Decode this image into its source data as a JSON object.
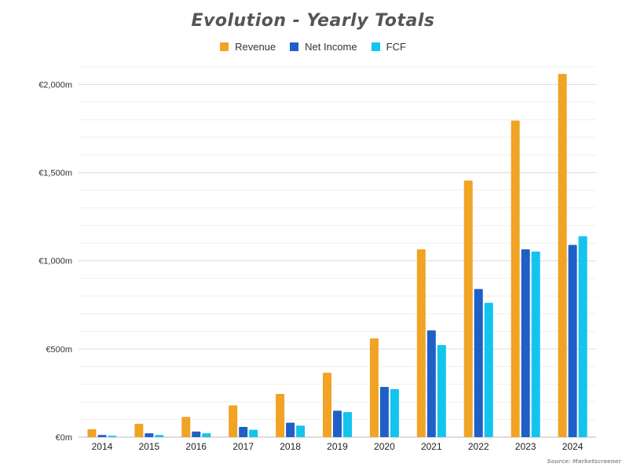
{
  "chart_data": {
    "type": "bar",
    "title": "Evolution - Yearly Totals",
    "categories": [
      "2014",
      "2015",
      "2016",
      "2017",
      "2018",
      "2019",
      "2020",
      "2021",
      "2022",
      "2023",
      "2024"
    ],
    "series": [
      {
        "name": "Revenue",
        "color": "#f0a324",
        "values": [
          45,
          75,
          115,
          180,
          245,
          365,
          560,
          1065,
          1455,
          1795,
          2060
        ]
      },
      {
        "name": "Net Income",
        "color": "#1f5fc8",
        "values": [
          12,
          22,
          32,
          58,
          82,
          150,
          285,
          605,
          840,
          1065,
          1090
        ]
      },
      {
        "name": "FCF",
        "color": "#13c4ee",
        "values": [
          8,
          12,
          22,
          42,
          65,
          142,
          272,
          522,
          762,
          1052,
          1140
        ]
      }
    ],
    "yticks": [
      {
        "value": 0,
        "label": "€0m"
      },
      {
        "value": 500,
        "label": "€500m"
      },
      {
        "value": 1000,
        "label": "€1,000m"
      },
      {
        "value": 1500,
        "label": "€1,500m"
      },
      {
        "value": 2000,
        "label": "€2,000m"
      }
    ],
    "ylim": [
      0,
      2100
    ],
    "xlabel": "",
    "ylabel": "",
    "legend_position": "top-center",
    "grid": true
  },
  "source": "Source: Marketscreener"
}
